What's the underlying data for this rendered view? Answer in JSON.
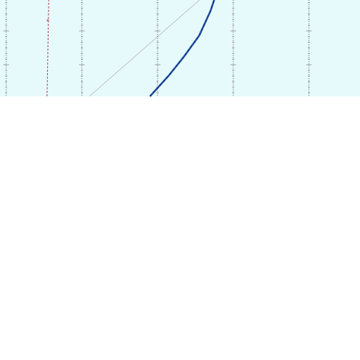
{
  "chart_data": {
    "type": "line",
    "title": "",
    "xlabel": "",
    "ylabel": "",
    "grid": true,
    "legend": "none",
    "xlim": [
      0,
      11
    ],
    "ylim": [
      0,
      5.5
    ],
    "vertical_gridlines_x": [
      1,
      3,
      5,
      7,
      9,
      11
    ],
    "series": [
      {
        "style": "solid-with-dashed-overlay",
        "color": "#1f4fa0",
        "overlay_color": "#0d2a66",
        "x": [
          4.8,
          5.3,
          5.7,
          6.1,
          6.4,
          6.6,
          7.0
        ],
        "y": [
          0.0,
          0.55,
          1.05,
          1.6,
          2.25,
          2.85,
          5.5
        ]
      },
      {
        "style": "thin-solid",
        "color": "#b8b8b8",
        "x": [
          3.2,
          9.5
        ],
        "y": [
          0.0,
          5.5
        ]
      },
      {
        "style": "dashed",
        "color": "#b03a4a",
        "x": [
          2.08,
          2.18
        ],
        "y": [
          0.0,
          5.5
        ]
      }
    ],
    "markers": [
      {
        "color": "#c07a86",
        "x": 2.1,
        "y": 2.0
      }
    ]
  },
  "colors": {
    "plot_background": "#e6f9fb",
    "page_background": "#ffffff",
    "gridline": "#8a8a8a"
  }
}
